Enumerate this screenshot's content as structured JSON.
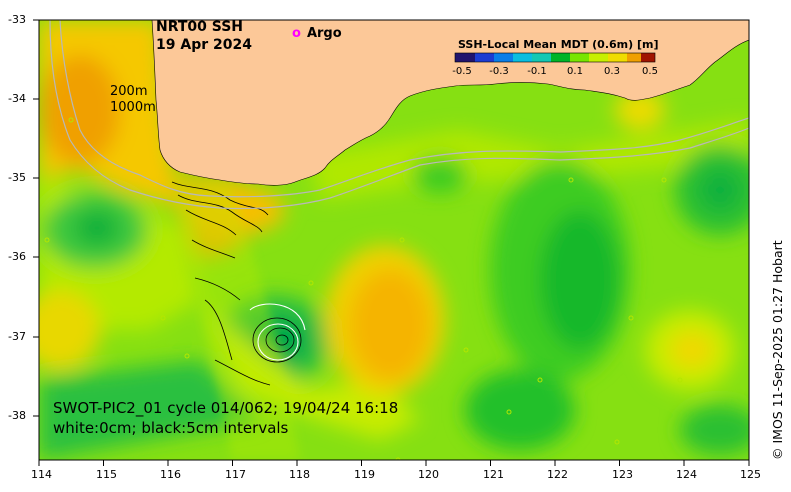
{
  "title": {
    "line1": "NRT00 SSH",
    "line2": "19 Apr 2024"
  },
  "legend": {
    "argo_symbol": "o",
    "argo_label": "Argo",
    "argo_color": "#ff00ff"
  },
  "depth_labels": [
    "200m",
    "1000m"
  ],
  "swot": {
    "line1": "SWOT-PIC2_01 cycle 014/062; 19/04/24 16:18",
    "line2": "white:0cm; black:5cm intervals"
  },
  "colorbar": {
    "title": "SSH-Local Mean MDT (0.6m) [m]",
    "ticks": [
      "-0.5",
      "-0.3",
      "-0.1",
      "0.1",
      "0.3",
      "0.5"
    ],
    "colors": [
      "#20146e",
      "#1c3cd2",
      "#0a96dc",
      "#14c8b4",
      "#00b400",
      "#78e600",
      "#c8f000",
      "#f0dc00",
      "#f5a500",
      "#e66e00",
      "#a01400"
    ]
  },
  "axes": {
    "lon_ticks": [
      "114",
      "115",
      "116",
      "117",
      "118",
      "119",
      "120",
      "121",
      "122",
      "123",
      "124",
      "125"
    ],
    "lat_ticks": [
      "-33",
      "-34",
      "-35",
      "-36",
      "-37",
      "-38"
    ]
  },
  "credit": "© IMOS 11-Sep-2025 01:27 Hobart",
  "colors": {
    "land": "#fcc898",
    "ocean_base": "#7ee010"
  }
}
